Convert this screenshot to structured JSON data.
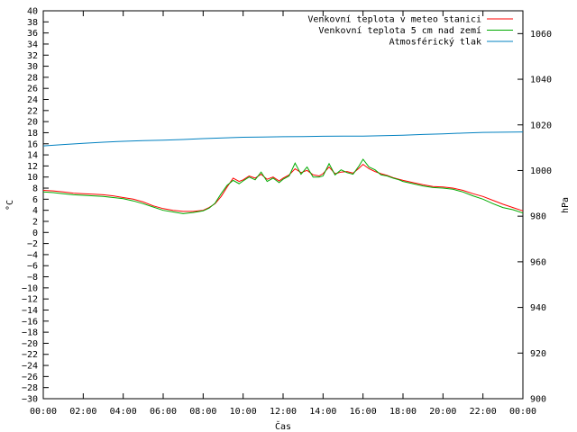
{
  "chart_data": {
    "type": "line",
    "xlabel": "Čas",
    "ylabel_left": "°C",
    "ylabel_right": "hPa",
    "x_ticks": [
      "00:00",
      "02:00",
      "04:00",
      "06:00",
      "08:00",
      "10:00",
      "12:00",
      "14:00",
      "16:00",
      "18:00",
      "20:00",
      "22:00",
      "00:00"
    ],
    "x_range": [
      0,
      24
    ],
    "y_left_range": [
      -30,
      40
    ],
    "y_left_step": 2,
    "y_right_range": [
      900,
      1070
    ],
    "y_right_ticks": [
      900,
      920,
      940,
      960,
      980,
      1000,
      1020,
      1040,
      1060
    ],
    "grid": false,
    "legend_position": "top-right",
    "series": [
      {
        "name": "Venkovní teplota v meteo stanici",
        "axis": "left",
        "color": "#ff0000",
        "x": [
          0,
          0.5,
          1,
          1.5,
          2,
          2.5,
          3,
          3.5,
          4,
          4.5,
          5,
          5.5,
          6,
          6.5,
          7,
          7.5,
          8,
          8.3,
          8.6,
          8.9,
          9.2,
          9.5,
          9.8,
          10,
          10.3,
          10.6,
          10.9,
          11.2,
          11.5,
          11.8,
          12,
          12.3,
          12.6,
          12.9,
          13.2,
          13.5,
          13.8,
          14,
          14.3,
          14.6,
          14.9,
          15.2,
          15.5,
          15.8,
          16,
          16.3,
          16.6,
          16.9,
          17.2,
          17.5,
          17.8,
          18,
          18.5,
          19,
          19.5,
          20,
          20.5,
          21,
          21.5,
          22,
          22.5,
          23,
          23.5,
          24
        ],
        "y": [
          7.6,
          7.5,
          7.3,
          7.1,
          7.0,
          6.9,
          6.8,
          6.6,
          6.3,
          6.0,
          5.5,
          4.8,
          4.3,
          4.0,
          3.8,
          3.8,
          4.0,
          4.5,
          5.2,
          6.5,
          8.2,
          9.8,
          9.2,
          9.5,
          10.2,
          9.8,
          10.5,
          9.6,
          10.0,
          9.3,
          9.8,
          10.4,
          11.5,
          10.8,
          11.2,
          10.4,
          10.2,
          10.6,
          11.8,
          10.6,
          10.9,
          11.0,
          10.7,
          11.6,
          12.3,
          11.5,
          11.0,
          10.6,
          10.3,
          9.9,
          9.6,
          9.4,
          9.0,
          8.6,
          8.3,
          8.2,
          8.0,
          7.6,
          7.0,
          6.5,
          5.8,
          5.1,
          4.5,
          3.9
        ]
      },
      {
        "name": "Venkovní teplota 5 cm nad zemí",
        "axis": "left",
        "color": "#00aa00",
        "x": [
          0,
          0.5,
          1,
          1.5,
          2,
          2.5,
          3,
          3.5,
          4,
          4.5,
          5,
          5.5,
          6,
          6.5,
          7,
          7.5,
          8,
          8.3,
          8.6,
          8.9,
          9.2,
          9.5,
          9.8,
          10,
          10.3,
          10.6,
          10.9,
          11.2,
          11.5,
          11.8,
          12,
          12.3,
          12.6,
          12.9,
          13.2,
          13.5,
          13.8,
          14,
          14.3,
          14.6,
          14.9,
          15.2,
          15.5,
          15.8,
          16,
          16.3,
          16.6,
          16.9,
          17.2,
          17.5,
          17.8,
          18,
          18.5,
          19,
          19.5,
          20,
          20.5,
          21,
          21.5,
          22,
          22.5,
          23,
          23.5,
          24
        ],
        "y": [
          7.3,
          7.2,
          7.0,
          6.8,
          6.7,
          6.6,
          6.5,
          6.3,
          6.1,
          5.7,
          5.2,
          4.6,
          4.0,
          3.7,
          3.4,
          3.6,
          3.9,
          4.4,
          5.3,
          7.0,
          8.5,
          9.4,
          8.8,
          9.3,
          10.0,
          9.5,
          10.9,
          9.2,
          9.8,
          9.0,
          9.6,
          10.2,
          12.5,
          10.5,
          11.8,
          10.0,
          10.0,
          10.2,
          12.4,
          10.4,
          11.3,
          10.8,
          10.5,
          12.0,
          13.2,
          11.8,
          11.3,
          10.4,
          10.2,
          9.8,
          9.5,
          9.2,
          8.8,
          8.4,
          8.1,
          8.0,
          7.8,
          7.3,
          6.6,
          6.0,
          5.2,
          4.5,
          4.1,
          3.5
        ]
      },
      {
        "name": "Atmosférický tlak",
        "axis": "right",
        "color": "#0080c0",
        "x": [
          0,
          1,
          2,
          3,
          4,
          5,
          6,
          7,
          8,
          9,
          10,
          11,
          12,
          13,
          14,
          15,
          16,
          17,
          18,
          19,
          20,
          21,
          22,
          23,
          24
        ],
        "y": [
          1010.8,
          1011.4,
          1011.9,
          1012.4,
          1012.8,
          1013.1,
          1013.3,
          1013.6,
          1014.0,
          1014.3,
          1014.6,
          1014.7,
          1014.8,
          1014.9,
          1015.0,
          1015.1,
          1015.1,
          1015.3,
          1015.5,
          1015.8,
          1016.1,
          1016.4,
          1016.7,
          1016.8,
          1016.9
        ]
      }
    ]
  }
}
